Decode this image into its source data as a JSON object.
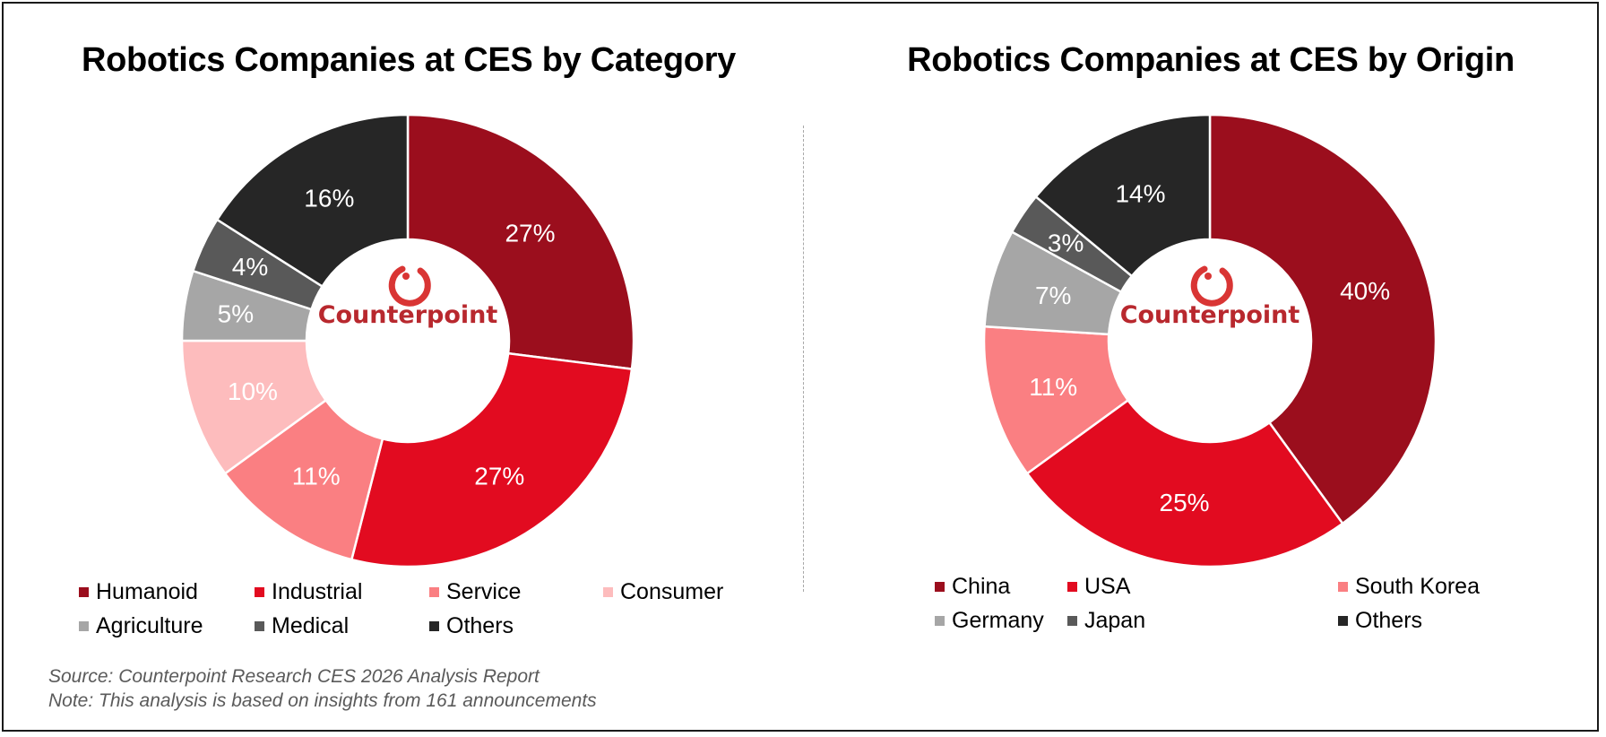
{
  "chart_data": [
    {
      "type": "pie",
      "variant": "donut",
      "title": "Robotics Companies at CES by Category",
      "center_logo": "Counterpoint",
      "categories": [
        "Humanoid",
        "Industrial",
        "Service",
        "Consumer",
        "Agriculture",
        "Medical",
        "Others"
      ],
      "values": [
        27,
        27,
        11,
        10,
        5,
        4,
        16
      ],
      "labels": [
        "27%",
        "27%",
        "11%",
        "10%",
        "5%",
        "4%",
        "16%"
      ],
      "colors": [
        "#9b0e1d",
        "#e20b20",
        "#fa7f82",
        "#fdbcbd",
        "#a6a6a6",
        "#595959",
        "#262626"
      ],
      "start_angle": "12 o'clock",
      "direction": "clockwise",
      "legend_position": "bottom"
    },
    {
      "type": "pie",
      "variant": "donut",
      "title": "Robotics Companies at CES by Origin",
      "center_logo": "Counterpoint",
      "categories": [
        "China",
        "USA",
        "South Korea",
        "Germany",
        "Japan",
        "Others"
      ],
      "values": [
        40,
        25,
        11,
        7,
        3,
        14
      ],
      "labels": [
        "40%",
        "25%",
        "11%",
        "7%",
        "3%",
        "14%"
      ],
      "colors": [
        "#9b0e1d",
        "#e20b20",
        "#fa7f82",
        "#a6a6a6",
        "#595959",
        "#262626"
      ],
      "start_angle": "12 o'clock",
      "direction": "clockwise",
      "legend_position": "bottom"
    }
  ],
  "footer": {
    "source": "Source: Counterpoint Research CES 2026 Analysis Report",
    "note": "Note: This analysis is based on insights from 161 announcements"
  },
  "logo": {
    "text": "Counterpoint",
    "color": "#b8282e",
    "icon": "counterpoint-ring-icon"
  }
}
